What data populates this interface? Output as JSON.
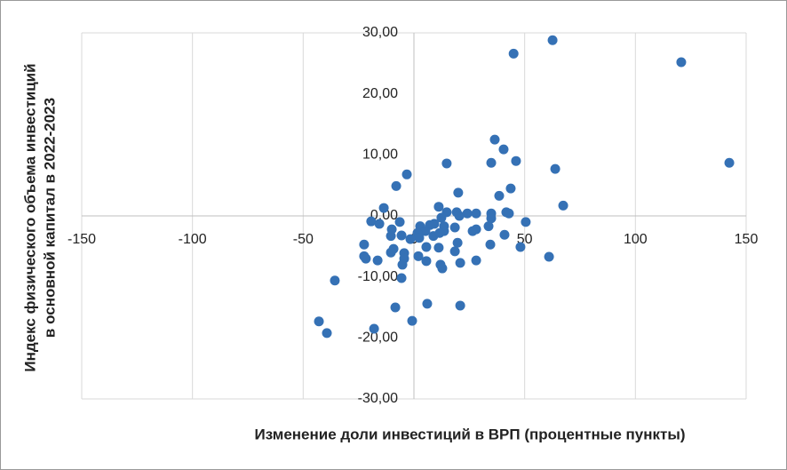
{
  "chart_data": {
    "type": "scatter",
    "xlabel": "Изменение доли инвестиций в ВРП (процентные пункты)",
    "ylabel": [
      "Индекс физического объема инвестиций",
      "в основной капитал в 2022-2023"
    ],
    "color": "#3571b5",
    "xlim": [
      -150,
      150
    ],
    "ylim": [
      -30,
      30
    ],
    "xticks": [
      -150,
      -100,
      -50,
      0,
      50,
      100,
      150
    ],
    "yticks": [
      {
        "value": -30,
        "label": "-30,00"
      },
      {
        "value": -20,
        "label": "-20,00"
      },
      {
        "value": -10,
        "label": "-10,00"
      },
      {
        "value": 0,
        "label": "0,00"
      },
      {
        "value": 10,
        "label": "10,00"
      },
      {
        "value": 20,
        "label": "20,00"
      },
      {
        "value": 30,
        "label": "30,00"
      }
    ],
    "grid": true,
    "x": [
      62.6,
      45,
      120.7,
      142.4,
      36.5,
      40.5,
      46.1,
      34.9,
      14.8,
      63.8,
      -3.2,
      -8,
      20,
      43.7,
      38.5,
      67.4,
      -13.6,
      11.2,
      41.7,
      42.9,
      28.1,
      34.9,
      24.1,
      14.8,
      19.3,
      20.5,
      12.4,
      34.9,
      50.5,
      -19.3,
      -15.6,
      -6.4,
      9.2,
      7.2,
      2.8,
      5.2,
      1.6,
      13.6,
      13.6,
      18.5,
      28.1,
      33.7,
      26.5,
      -10,
      -5.6,
      -10.4,
      40.9,
      8.8,
      11.6,
      2.4,
      -1.6,
      19.7,
      -22.5,
      34.5,
      11.2,
      5.6,
      -9.2,
      48.1,
      -10.4,
      -4.4,
      18.5,
      2,
      -4.4,
      -22.5,
      -21.7,
      -16.4,
      5.6,
      28.1,
      61,
      20.9,
      12,
      -5.2,
      12.8,
      -5.6,
      -35.7,
      6,
      20.9,
      -8.4,
      -0.8,
      -42.9,
      -18,
      -39.3
    ],
    "y": [
      28.8,
      26.6,
      25.2,
      8.7,
      12.5,
      10.9,
      9.0,
      8.7,
      8.6,
      7.7,
      6.8,
      4.9,
      3.8,
      4.5,
      3.3,
      1.7,
      1.3,
      1.5,
      0.6,
      0.4,
      0.4,
      0.4,
      0.4,
      0.6,
      0.6,
      0,
      -0.3,
      -0.4,
      -1,
      -0.9,
      -1.3,
      -1,
      -1.3,
      -1.5,
      -1.7,
      -2.5,
      -2.8,
      -1.7,
      -2.5,
      -1.9,
      -2.2,
      -1.7,
      -2.5,
      -2.2,
      -3.2,
      -3.3,
      -3.1,
      -3.3,
      -2.8,
      -3.6,
      -3.8,
      -4.4,
      -4.7,
      -4.7,
      -5.2,
      -5.1,
      -5.4,
      -5.1,
      -6.0,
      -6.1,
      -5.8,
      -6.6,
      -7.0,
      -6.6,
      -7.0,
      -7.3,
      -7.4,
      -7.3,
      -6.7,
      -7.7,
      -8,
      -8,
      -8.6,
      -10.2,
      -10.6,
      -14.4,
      -14.7,
      -15,
      -17.2,
      -17.3,
      -18.5,
      -19.2
    ]
  }
}
